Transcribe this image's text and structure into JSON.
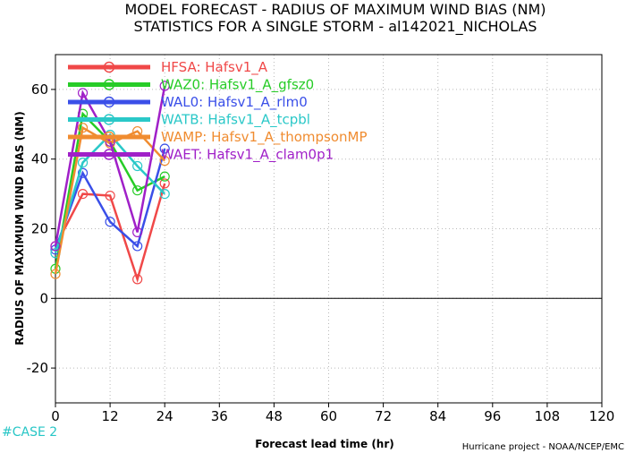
{
  "header": {
    "title_line1": "MODEL FORECAST - RADIUS OF MAXIMUM WIND BIAS (NM)",
    "title_line2": "STATISTICS FOR A SINGLE STORM - al142021_NICHOLAS"
  },
  "footer": {
    "case_label": "#CASE  2",
    "credit": "Hurricane project - NOAA/NCEP/EMC"
  },
  "chart_data": {
    "type": "line",
    "xlabel": "Forecast lead time (hr)",
    "ylabel": "RADIUS OF MAXIMUM WIND BIAS (NM)",
    "xlim": [
      0,
      120
    ],
    "ylim": [
      -30,
      70
    ],
    "xticks": [
      0,
      12,
      24,
      36,
      48,
      60,
      72,
      84,
      96,
      108,
      120
    ],
    "yticks": [
      -20,
      0,
      20,
      40,
      60
    ],
    "grid": true,
    "legend_position": "top-left",
    "x": [
      0,
      6,
      12,
      18,
      24
    ],
    "series": [
      {
        "name": "HFSA:  Hafsv1_A",
        "color": "#f04848",
        "values": [
          15,
          30,
          29.5,
          5.5,
          33
        ]
      },
      {
        "name": "WAZ0:  Hafsv1_A_gfsz0",
        "color": "#27cc27",
        "values": [
          8.5,
          53,
          45,
          31,
          35
        ]
      },
      {
        "name": "WAL0:  Hafsv1_A_rlm0",
        "color": "#3a4fe8",
        "values": [
          14,
          36,
          22,
          15,
          43
        ]
      },
      {
        "name": "WATB:  Hafsv1_A_tcpbl",
        "color": "#2ac8c8",
        "values": [
          13,
          39,
          47,
          38,
          30
        ]
      },
      {
        "name": "WAMP:  Hafsv1_A_thompsonMP",
        "color": "#f08c30",
        "values": [
          7,
          49,
          44.5,
          48,
          39.5
        ]
      },
      {
        "name": "WAET:  Hafsv1_A_clam0p1",
        "color": "#a020c8",
        "values": [
          15,
          59,
          45,
          19,
          61
        ]
      }
    ]
  }
}
